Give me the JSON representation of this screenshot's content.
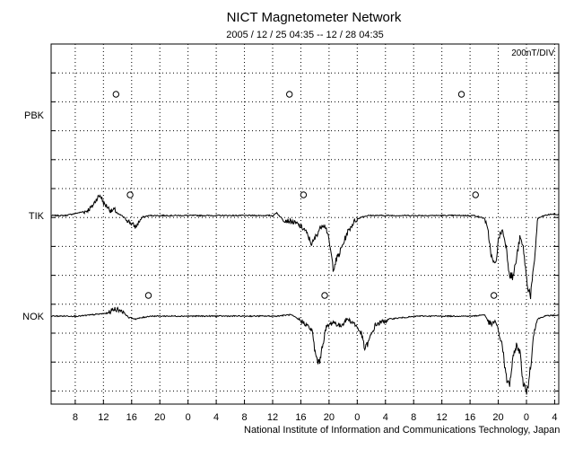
{
  "chart_data": {
    "type": "line",
    "title": "NICT Magnetometer Network",
    "subtitle": "2005 / 12 / 25   04:35 -- 12 / 28   04:35",
    "scale_label": "200nT/DIV",
    "footer": "National Institute of Information and Communications Technology, Japan",
    "x_tick_labels": [
      "8",
      "12",
      "16",
      "20",
      "0",
      "4",
      "8",
      "12",
      "16",
      "20",
      "0",
      "4",
      "8",
      "12",
      "16",
      "20",
      "0",
      "4"
    ],
    "x_ticks_hours": [
      3.42,
      7.42,
      11.42,
      15.42,
      19.42,
      23.42,
      27.42,
      31.42,
      35.42,
      39.42,
      43.42,
      47.42,
      51.42,
      55.42,
      59.42,
      63.42,
      67.42,
      71.42
    ],
    "x_range_hours": [
      0,
      72
    ],
    "grid": true,
    "stations": [
      "PBK",
      "TIK",
      "NOK"
    ],
    "series": [
      {
        "name": "PBK",
        "x": [],
        "y": []
      },
      {
        "name": "TIK",
        "x": [
          0,
          2,
          4,
          5,
          5.8,
          6.5,
          7,
          7.5,
          8,
          8.5,
          9,
          9.5,
          10,
          10.5,
          11,
          11.5,
          12,
          12.5,
          13,
          14,
          16,
          20,
          24,
          28,
          31.5,
          32,
          32.5,
          33,
          34,
          35,
          36,
          36.5,
          37,
          37.5,
          38,
          38.5,
          39,
          39.5,
          40,
          41,
          42,
          43,
          44,
          45,
          46,
          48,
          52,
          56,
          60,
          61.5,
          62,
          62.5,
          63,
          63.5,
          64,
          64.5,
          65,
          65.5,
          66,
          66.5,
          67,
          67.5,
          68,
          68.5,
          69,
          70,
          71,
          72
        ],
        "y": [
          0,
          0,
          20,
          30,
          60,
          120,
          140,
          80,
          60,
          30,
          40,
          10,
          0,
          -20,
          -40,
          -60,
          -80,
          -40,
          -10,
          0,
          0,
          0,
          0,
          0,
          0,
          20,
          -10,
          -30,
          -40,
          -60,
          -100,
          -150,
          -200,
          -150,
          -100,
          -60,
          -80,
          -200,
          -360,
          -250,
          -120,
          -40,
          -10,
          0,
          0,
          0,
          0,
          0,
          0,
          -20,
          -120,
          -300,
          -350,
          -150,
          -100,
          -200,
          -400,
          -430,
          -300,
          -150,
          -230,
          -470,
          -550,
          -350,
          -20,
          0,
          10,
          5
        ],
        "markers_hours": [
          11.2,
          35.8,
          60.2
        ]
      },
      {
        "name": "NOK",
        "x": [
          0,
          4,
          6,
          8,
          9,
          10,
          11,
          12,
          13,
          14,
          16,
          20,
          24,
          28,
          32,
          34,
          35,
          36,
          37,
          37.5,
          38,
          38.5,
          39,
          40,
          41,
          42,
          43,
          44,
          44.5,
          45,
          46,
          48,
          52,
          56,
          60,
          61.5,
          62,
          62.5,
          63,
          63.5,
          64,
          64.5,
          65,
          65.5,
          66,
          66.5,
          67,
          67.5,
          68,
          68.5,
          69,
          70,
          71,
          72
        ],
        "y": [
          0,
          0,
          10,
          20,
          50,
          40,
          -10,
          -20,
          -10,
          0,
          0,
          0,
          0,
          0,
          0,
          10,
          -20,
          -50,
          -100,
          -270,
          -330,
          -200,
          -80,
          -40,
          -70,
          -20,
          -50,
          -120,
          -230,
          -180,
          -60,
          -20,
          0,
          0,
          0,
          10,
          -40,
          -60,
          -30,
          -120,
          -200,
          -420,
          -480,
          -300,
          -200,
          -250,
          -480,
          -530,
          -350,
          -100,
          -20,
          0,
          5,
          5
        ],
        "markers_hours": [
          13.8,
          38.8,
          62.8
        ]
      }
    ]
  }
}
